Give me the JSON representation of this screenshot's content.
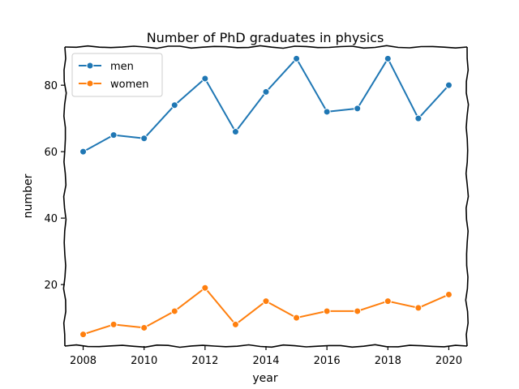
{
  "chart_data": {
    "type": "line",
    "title": "Number of PhD graduates in physics",
    "xlabel": "year",
    "ylabel": "number",
    "x": [
      2008,
      2009,
      2010,
      2011,
      2012,
      2013,
      2014,
      2015,
      2016,
      2017,
      2018,
      2019,
      2020
    ],
    "xticks": [
      2008,
      2010,
      2012,
      2014,
      2016,
      2018,
      2020
    ],
    "yticks": [
      20,
      40,
      60,
      80
    ],
    "xlim": [
      2007.4,
      2020.6
    ],
    "ylim": [
      1.5,
      91.5
    ],
    "grid": false,
    "legend_position": "top-left",
    "series": [
      {
        "name": "men",
        "color": "#1f77b4",
        "values": [
          60,
          65,
          64,
          74,
          82,
          66,
          78,
          88,
          72,
          73,
          88,
          70,
          80
        ]
      },
      {
        "name": "women",
        "color": "#ff7f0e",
        "values": [
          5,
          8,
          7,
          12,
          19,
          8,
          15,
          10,
          12,
          12,
          15,
          13,
          17
        ]
      }
    ]
  }
}
